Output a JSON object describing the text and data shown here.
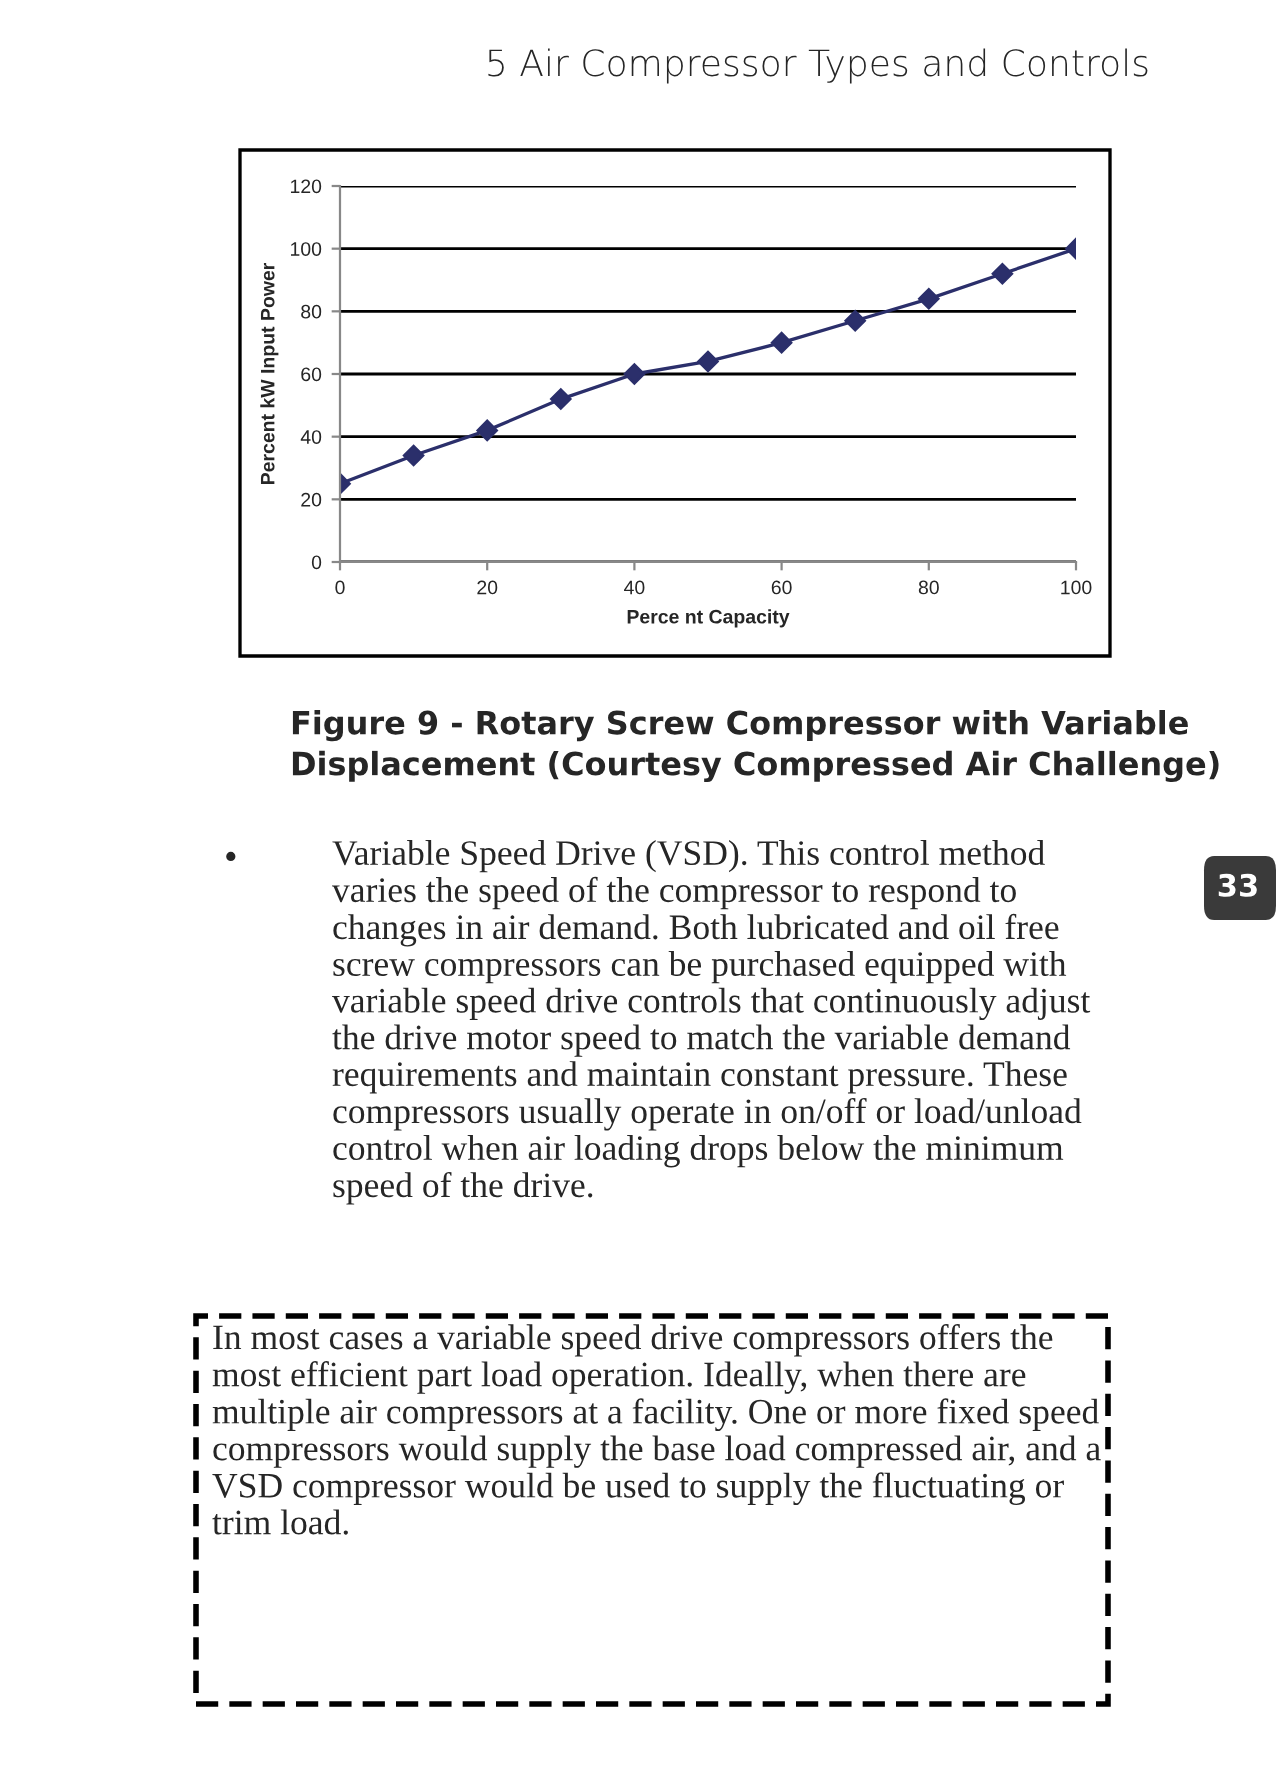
{
  "chart_data": {
    "type": "line",
    "xlabel": "Perce nt Capacity",
    "ylabel": "Percent kW Input Power",
    "x": [
      0,
      10,
      20,
      30,
      40,
      50,
      60,
      70,
      80,
      90,
      100
    ],
    "series": [
      {
        "color": "#2b2f6b",
        "values": [
          25,
          34,
          42,
          52,
          60,
          64,
          70,
          77,
          84,
          92,
          100
        ]
      }
    ],
    "xlim": [
      0,
      100
    ],
    "xticks": [
      0,
      20,
      40,
      60,
      80,
      100
    ],
    "ylim": [
      0,
      120
    ],
    "yticks": [
      0,
      20,
      40,
      60,
      80,
      100,
      120
    ],
    "grid": "y",
    "marker": "diamond",
    "line_style": "solid",
    "legend": false,
    "annotations": [
      "5 Air Compressor Types and Controls",
      "Figure 9 - Rotary Screw Compressor with Variable\nDisplacement (Courtesy Compressed Air Challenge)",
      "•",
      "Variable Speed Drive (VSD). This control method\nvaries the speed of the compressor to respond to\nchanges in air demand. Both lubricated and oil free\nscrew compressors can be purchased equipped with\nvariable speed drive controls that continuously adjust\nthe drive motor speed to match the variable demand\nrequirements and maintain constant pressure. These\ncompressors usually operate in on/off or load/unload\ncontrol when air loading drops below the minimum\nspeed of the drive.",
      "33",
      "In most cases a variable speed drive compressors offers the\nmost efficient part load operation. Ideally, when there are\nmultiple air compressors at a facility. One or more fixed speed\ncompressors would supply the base load compressed air, and a\nVSD compressor would be used to supply the fluctuating or\ntrim load."
    ]
  }
}
